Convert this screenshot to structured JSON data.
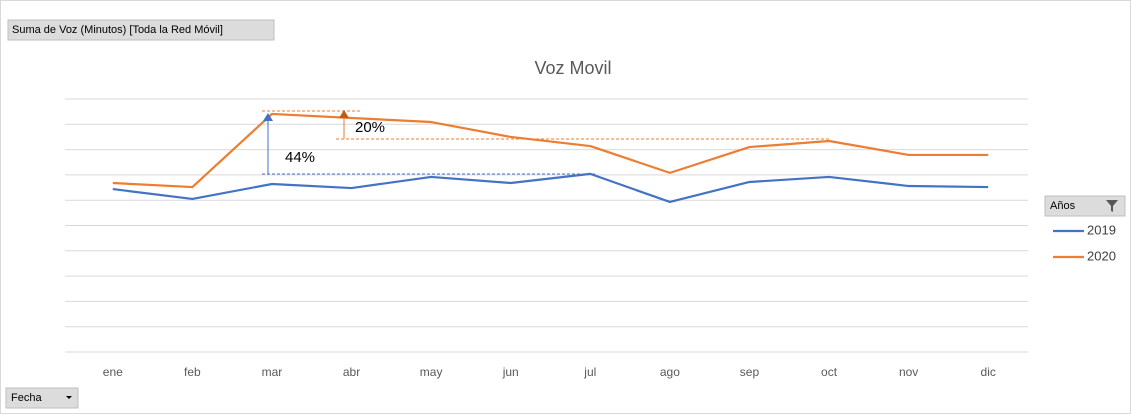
{
  "chart_data": {
    "type": "line",
    "title": "Voz  Movil",
    "field_button": "Suma de Voz (Minutos) [Toda la Red Móvil]",
    "axis_button": "Fecha",
    "legend_title": "Años",
    "annotations": [
      "44%",
      "20%"
    ],
    "categories": [
      "ene",
      "feb",
      "mar",
      "abr",
      "may",
      "jun",
      "jul",
      "ago",
      "sep",
      "oct",
      "nov",
      "dic"
    ],
    "series": [
      {
        "name": "2019",
        "color": "#4472c4",
        "values": [
          6.44,
          6.05,
          6.64,
          6.48,
          6.92,
          6.68,
          7.04,
          5.93,
          6.72,
          6.92,
          6.56,
          6.52
        ]
      },
      {
        "name": "2020",
        "color": "#ed7d31",
        "values": [
          6.68,
          6.52,
          9.41,
          9.25,
          9.09,
          8.5,
          8.14,
          7.08,
          8.1,
          8.34,
          7.79,
          7.79
        ]
      }
    ],
    "ylim": [
      0,
      10
    ],
    "yticks": [
      0,
      1,
      2,
      3,
      4,
      5,
      6,
      7,
      8,
      9,
      10
    ],
    "grid": true,
    "legend": "right"
  }
}
